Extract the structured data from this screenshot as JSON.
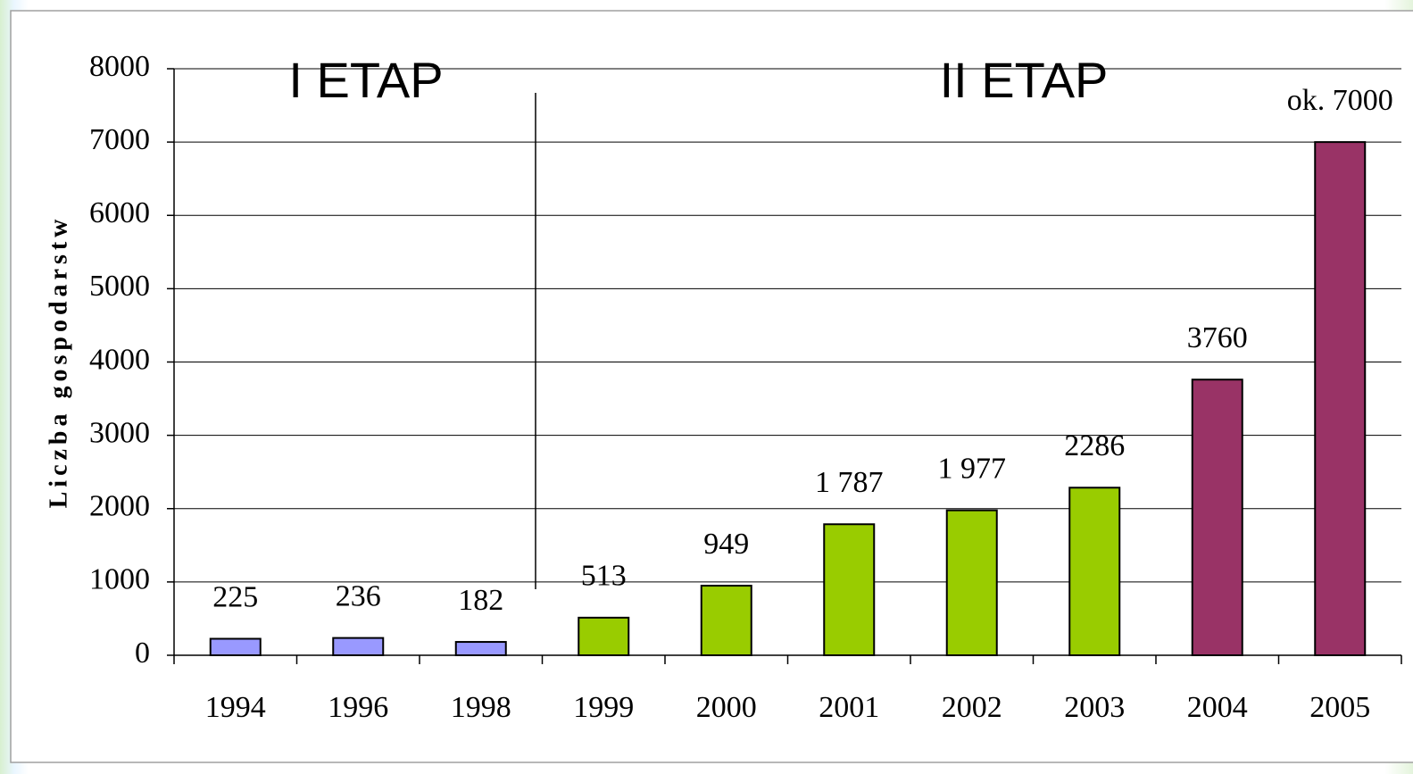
{
  "chart_data": {
    "type": "bar",
    "y_label": "Liczba gospodarstw",
    "categories": [
      "1994",
      "1996",
      "1998",
      "1999",
      "2000",
      "2001",
      "2002",
      "2003",
      "2004",
      "2005"
    ],
    "values": [
      225,
      236,
      182,
      513,
      949,
      1787,
      1977,
      2286,
      3760,
      7000
    ],
    "value_labels": [
      "225",
      "236",
      "182",
      "513",
      "949",
      "1 787",
      "1 977",
      "2286",
      "3760",
      "ok. 7000"
    ],
    "colors": [
      "#9999ff",
      "#9999ff",
      "#9999ff",
      "#99cc00",
      "#99cc00",
      "#99cc00",
      "#99cc00",
      "#99cc00",
      "#993366",
      "#993366"
    ],
    "annotations": [
      "I ETAP",
      "II ETAP"
    ],
    "ylim": [
      0,
      8000
    ],
    "yticks": [
      0,
      1000,
      2000,
      3000,
      4000,
      5000,
      6000,
      7000,
      8000
    ],
    "grid": true
  }
}
